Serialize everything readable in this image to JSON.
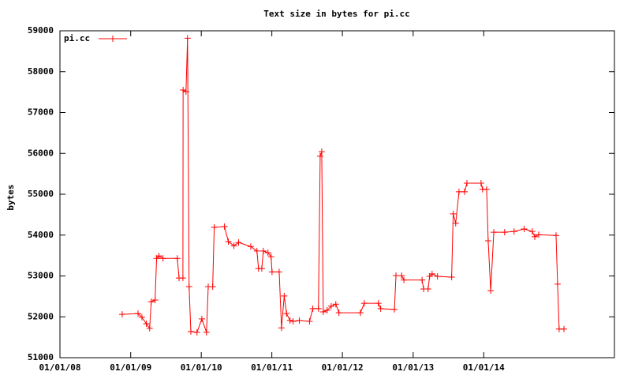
{
  "chart_data": {
    "type": "line",
    "title": "Text size in bytes for pi.cc",
    "y_label": "bytes",
    "legend": "top-left",
    "series": [
      {
        "name": "pi.cc",
        "color": "#ff0000",
        "x": [
          "2008-11-18",
          "2009-02-08",
          "2009-02-28",
          "2009-03-23",
          "2009-04-09",
          "2009-04-17",
          "2009-05-07",
          "2009-05-15",
          "2009-05-27",
          "2009-06-17",
          "2009-08-30",
          "2009-09-08",
          "2009-09-28",
          "2009-09-29",
          "2009-10-14",
          "2009-10-22",
          "2009-10-30",
          "2009-11-08",
          "2009-12-10",
          "2010-01-04",
          "2010-01-28",
          "2010-02-06",
          "2010-03-01",
          "2010-03-09",
          "2010-05-01",
          "2010-05-21",
          "2010-06-19",
          "2010-07-13",
          "2010-09-14",
          "2010-10-16",
          "2010-10-24",
          "2010-11-10",
          "2010-11-18",
          "2010-12-12",
          "2010-12-28",
          "2011-01-02",
          "2011-02-08",
          "2011-02-20",
          "2011-03-06",
          "2011-03-18",
          "2011-04-05",
          "2011-04-21",
          "2011-05-23",
          "2011-07-15",
          "2011-08-01",
          "2011-08-30",
          "2011-09-08",
          "2011-09-16",
          "2011-09-24",
          "2011-10-14",
          "2011-11-04",
          "2011-11-28",
          "2011-12-14",
          "2012-04-03",
          "2012-04-23",
          "2012-07-05",
          "2012-07-17",
          "2012-09-26",
          "2012-10-04",
          "2012-11-02",
          "2012-11-14",
          "2013-02-16",
          "2013-02-24",
          "2013-03-19",
          "2013-03-27",
          "2013-04-09",
          "2013-05-07",
          "2013-07-19",
          "2013-07-27",
          "2013-08-09",
          "2013-08-26",
          "2013-09-24",
          "2013-10-06",
          "2013-12-18",
          "2013-12-26",
          "2014-01-16",
          "2014-01-24",
          "2014-02-06",
          "2014-02-22",
          "2014-04-19",
          "2014-06-07",
          "2014-07-29",
          "2014-09-09",
          "2014-09-22",
          "2014-10-12",
          "2015-01-10",
          "2015-01-18",
          "2015-01-26",
          "2015-02-20"
        ],
        "values": [
          52060,
          52080,
          51990,
          51830,
          51720,
          52370,
          52410,
          53430,
          53490,
          53430,
          53430,
          52950,
          52950,
          57550,
          57510,
          58820,
          52740,
          51640,
          51620,
          51950,
          51620,
          52740,
          52740,
          54190,
          54210,
          53840,
          53740,
          53820,
          53720,
          53610,
          53180,
          53180,
          53610,
          53570,
          53470,
          53100,
          53100,
          51730,
          52510,
          52080,
          51910,
          51890,
          51910,
          51890,
          52200,
          52200,
          55930,
          56040,
          52120,
          52160,
          52260,
          52310,
          52100,
          52100,
          52330,
          52330,
          52200,
          52180,
          53010,
          53010,
          52900,
          52900,
          52680,
          52680,
          52990,
          53050,
          52990,
          52970,
          54520,
          54290,
          55060,
          55060,
          55270,
          55270,
          55120,
          55120,
          53860,
          52640,
          54070,
          54070,
          54090,
          54150,
          54090,
          53960,
          54010,
          53990,
          52800,
          51700,
          51700
        ]
      }
    ],
    "xlim": [
      "2008-01-01",
      "2015-11-08"
    ],
    "xticks": [
      {
        "value": "2008-01-01",
        "label": "01/01/08"
      },
      {
        "value": "2009-01-01",
        "label": "01/01/09"
      },
      {
        "value": "2010-01-01",
        "label": "01/01/10"
      },
      {
        "value": "2011-01-01",
        "label": "01/01/11"
      },
      {
        "value": "2012-01-01",
        "label": "01/01/12"
      },
      {
        "value": "2013-01-01",
        "label": "01/01/13"
      },
      {
        "value": "2014-01-01",
        "label": "01/01/14"
      }
    ],
    "ylim": [
      51000,
      59000
    ],
    "yticks": [
      51000,
      52000,
      53000,
      54000,
      55000,
      56000,
      57000,
      58000,
      59000
    ]
  }
}
